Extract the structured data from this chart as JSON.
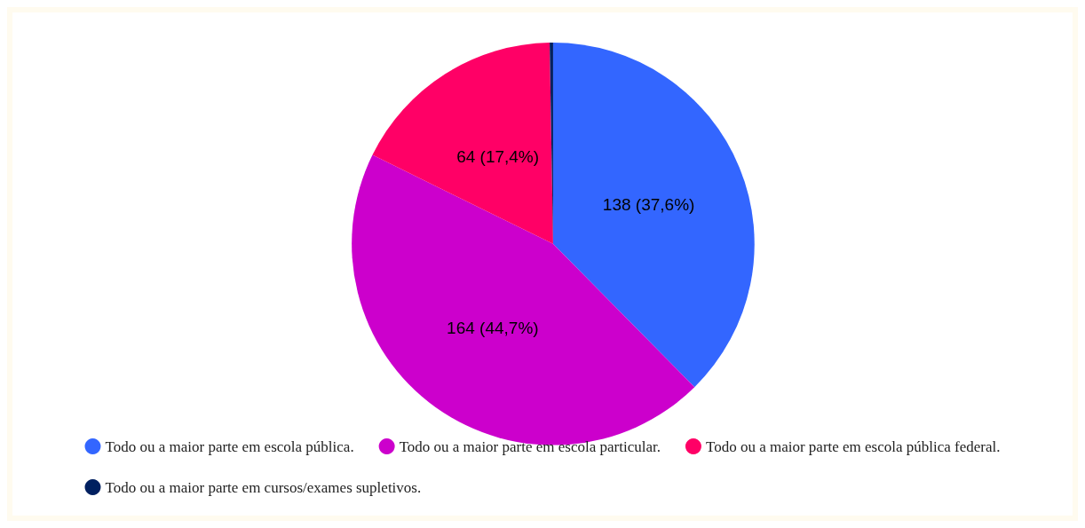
{
  "chart_data": {
    "type": "pie",
    "categories": [
      "Todo ou a maior parte em escola pública.",
      "Todo ou a maior parte em escola particular.",
      "Todo ou a maior parte em escola pública federal.",
      "Todo ou a maior parte em cursos/exames supletivos."
    ],
    "values": [
      138,
      164,
      64,
      1
    ],
    "colors": [
      "#3366ff",
      "#cc00cc",
      "#ff0066",
      "#002060"
    ],
    "value_labels": [
      "138 (37,6%)",
      "164 (44,7%)",
      "64 (17,4%)",
      null
    ],
    "legend": "bottom"
  }
}
